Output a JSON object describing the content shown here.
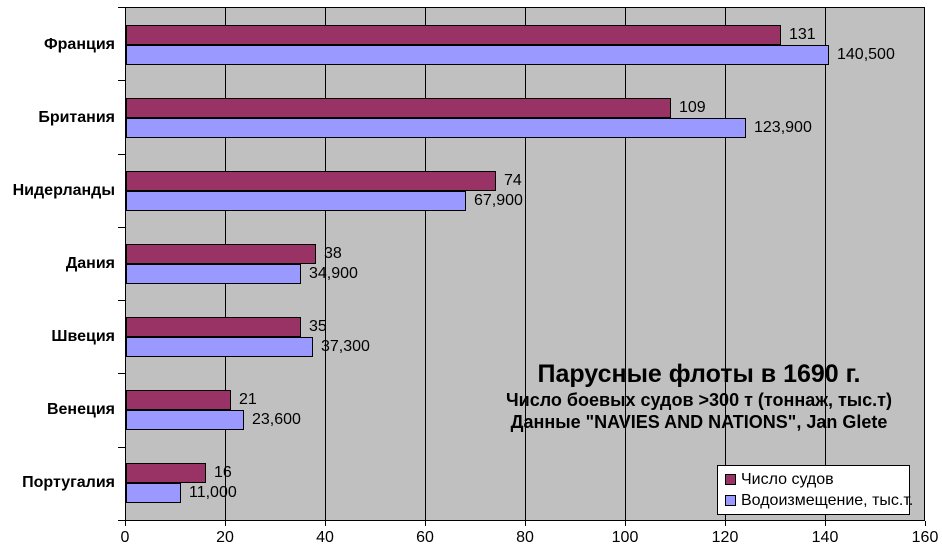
{
  "chart_data": {
    "type": "bar",
    "orientation": "horizontal",
    "title": "Парусные флоты в 1690 г.",
    "subtitle": "Число боевых судов >300 т (тоннаж, тыс.т)",
    "source_line": "Данные \"NAVIES AND NATIONS\", Jan Glete",
    "categories": [
      "Франция",
      "Британия",
      "Нидерланды",
      "Дания",
      "Швеция",
      "Венеция",
      "Португалия"
    ],
    "series": [
      {
        "name": "Число судов",
        "color": "#993366",
        "values": [
          131,
          109,
          74,
          38,
          35,
          21,
          16
        ],
        "labels": [
          "131",
          "109",
          "74",
          "38",
          "35",
          "21",
          "16"
        ]
      },
      {
        "name": "Водоизмещение, тыс.т.",
        "color": "#9999FF",
        "values": [
          140.5,
          123.9,
          67.9,
          34.9,
          37.3,
          23.6,
          11.0
        ],
        "labels": [
          "140,500",
          "123,900",
          "67,900",
          "34,900",
          "37,300",
          "23,600",
          "11,000"
        ]
      }
    ],
    "xlim": [
      0,
      160
    ],
    "x_ticks": [
      0,
      20,
      40,
      60,
      80,
      100,
      120,
      140,
      160
    ],
    "grid": true,
    "legend_position": "bottom-right",
    "plot_bg_color": "#C0C0C0",
    "gridline_color": "#000000"
  }
}
